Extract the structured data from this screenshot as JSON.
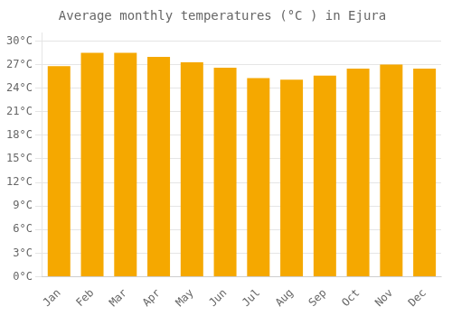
{
  "chart_data": {
    "type": "bar",
    "title": "Average monthly temperatures (°C ) in Ejura",
    "categories": [
      "Jan",
      "Feb",
      "Mar",
      "Apr",
      "May",
      "Jun",
      "Jul",
      "Aug",
      "Sep",
      "Oct",
      "Nov",
      "Dec"
    ],
    "values": [
      26.8,
      28.5,
      28.5,
      28.0,
      27.3,
      26.6,
      25.3,
      25.1,
      25.6,
      26.5,
      27.0,
      26.5
    ],
    "color": "#F5A800",
    "ylim": [
      0,
      31
    ],
    "yticks": [
      {
        "value": 0,
        "label": "0°C"
      },
      {
        "value": 3,
        "label": "3°C"
      },
      {
        "value": 6,
        "label": "6°C"
      },
      {
        "value": 9,
        "label": "9°C"
      },
      {
        "value": 12,
        "label": "12°C"
      },
      {
        "value": 15,
        "label": "15°C"
      },
      {
        "value": 18,
        "label": "18°C"
      },
      {
        "value": 21,
        "label": "21°C"
      },
      {
        "value": 24,
        "label": "24°C"
      },
      {
        "value": 27,
        "label": "27°C"
      },
      {
        "value": 30,
        "label": "30°C"
      }
    ],
    "grid": true
  }
}
